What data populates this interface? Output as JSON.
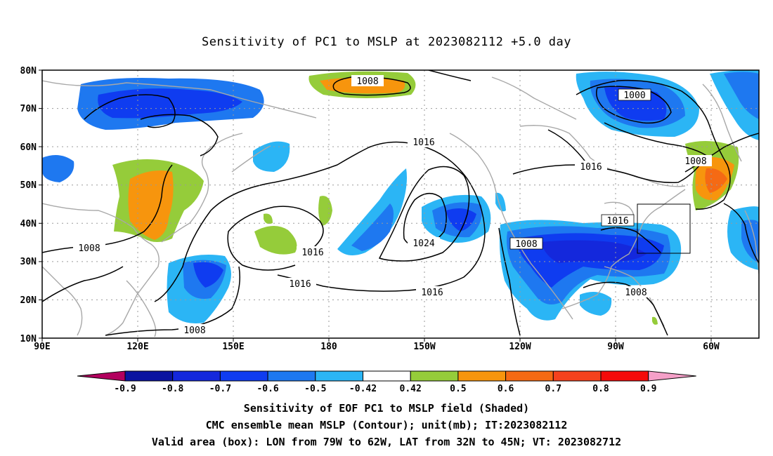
{
  "title": "Sensitivity of PC1 to MSLP at 2023082112 +5.0 day",
  "lat_ticks": [
    "80N",
    "70N",
    "60N",
    "50N",
    "40N",
    "30N",
    "20N",
    "10N"
  ],
  "lon_ticks": [
    "90E",
    "120E",
    "150E",
    "180",
    "150W",
    "120W",
    "90W",
    "60W"
  ],
  "contour_labels": [
    "1008",
    "1000",
    "1008",
    "1016",
    "1016",
    "1016",
    "1008",
    "1016",
    "1024",
    "1016",
    "1016",
    "1008",
    "1008",
    "1008"
  ],
  "colorbar": {
    "labels": [
      "-0.9",
      "-0.8",
      "-0.7",
      "-0.6",
      "-0.5",
      "-0.42",
      "0.42",
      "0.5",
      "0.6",
      "0.7",
      "0.8",
      "0.9"
    ],
    "colors": [
      "#b2005e",
      "#0a14a0",
      "#1428dc",
      "#0f3cf0",
      "#1e78f0",
      "#2bb5f5",
      "#ffffff",
      "#95cc3a",
      "#f7950d",
      "#f56a14",
      "#f5421e",
      "#f50a0a",
      "#f5a0c8"
    ]
  },
  "shading_colors": {
    "lightblue": "#2bb5f5",
    "midblue": "#1e78f0",
    "blue": "#0f3cf0",
    "darkblue": "#1428dc",
    "green": "#95cc3a",
    "orange": "#f7950d",
    "darkorange": "#f56a14"
  },
  "captions": [
    "Sensitivity of EOF PC1 to MSLP field (Shaded)",
    "CMC ensemble mean MSLP (Contour); unit(mb); IT:2023082112",
    "Valid area (box): LON from 79W to 62W, LAT from 32N to 45N; VT: 2023082712"
  ]
}
